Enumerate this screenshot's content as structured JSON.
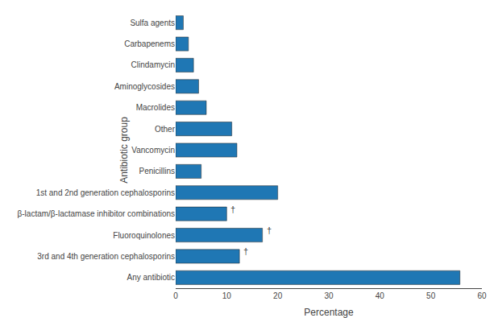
{
  "chart_data": {
    "type": "bar",
    "orientation": "horizontal",
    "categories": [
      "Any antibiotic",
      "3rd and 4th generation cephalosporins",
      "Fluoroquinolones",
      "β-lactam/β-lactamase inhibitor combinations",
      "1st and 2nd generation cephalosporins",
      "Penicillins",
      "Vancomycin",
      "Other",
      "Macrolides",
      "Aminoglycosides",
      "Clindamycin",
      "Carbapenems",
      "Sulfa agents"
    ],
    "values": [
      55.7,
      12.5,
      17.0,
      10.0,
      20.0,
      5.0,
      12.0,
      11.0,
      6.0,
      4.5,
      3.5,
      2.5,
      1.5
    ],
    "color": "#1F77B4",
    "xlabel": "Percentage",
    "ylabel": "Antibiotic group",
    "xlim": [
      0,
      60
    ],
    "xticks": [
      0,
      10,
      20,
      30,
      40,
      50,
      60
    ],
    "grid": false,
    "annotations": [
      {
        "category": "β-lactam/β-lactamase inhibitor combinations",
        "text": "†"
      },
      {
        "category": "Fluoroquinolones",
        "text": "†"
      },
      {
        "category": "3rd and 4th generation cephalosporins",
        "text": "†"
      }
    ]
  }
}
